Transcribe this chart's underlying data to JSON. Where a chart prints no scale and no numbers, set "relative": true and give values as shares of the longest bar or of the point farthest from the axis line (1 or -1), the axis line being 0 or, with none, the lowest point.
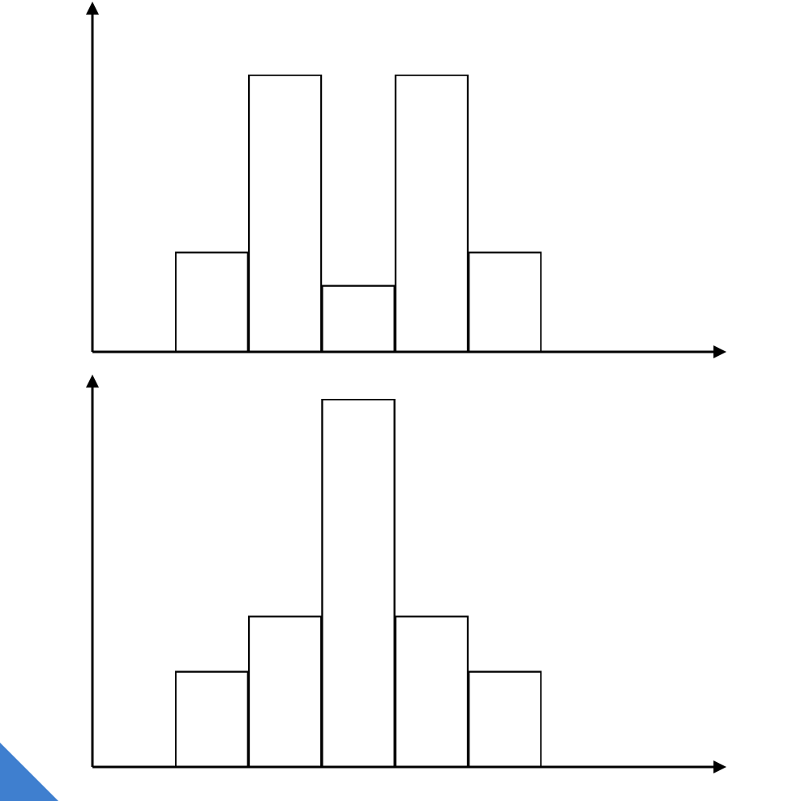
{
  "chart_data": [
    {
      "type": "bar",
      "relative": true,
      "categories": [
        null,
        null,
        null,
        null,
        null
      ],
      "values": [
        0.36,
        1,
        0.24,
        1,
        0.36
      ],
      "color": "#ffffff"
    },
    {
      "type": "bar",
      "relative": true,
      "categories": [
        null,
        null,
        null,
        null,
        null
      ],
      "values": [
        0.26,
        0.41,
        1,
        0.41,
        0.26
      ],
      "color": "#ffffff"
    }
  ]
}
